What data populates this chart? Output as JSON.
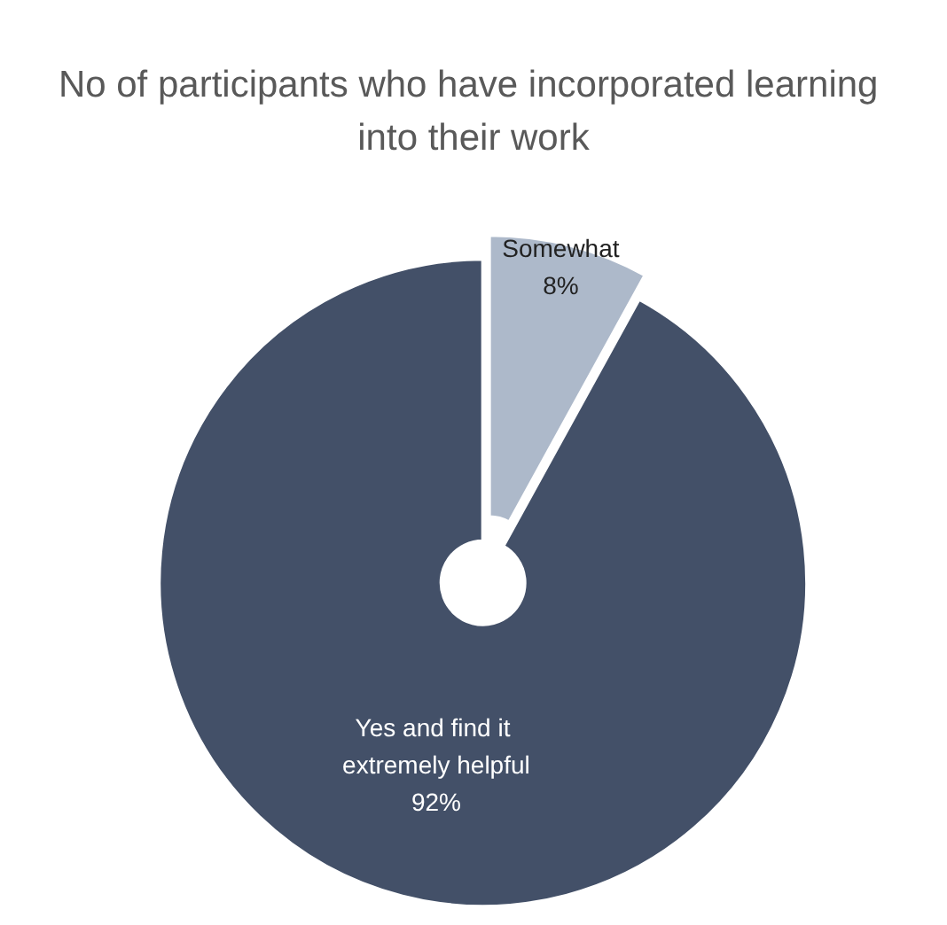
{
  "chart_data": {
    "type": "donut",
    "title": "No of participants who have incorporated learning into their work",
    "categories": [
      "Somewhat",
      "Yes and find it extremely helpful"
    ],
    "values": [
      8,
      92
    ],
    "colors": [
      "#adb9ca",
      "#435068"
    ],
    "value_labels": [
      "8%",
      "92%"
    ],
    "legend": false
  }
}
